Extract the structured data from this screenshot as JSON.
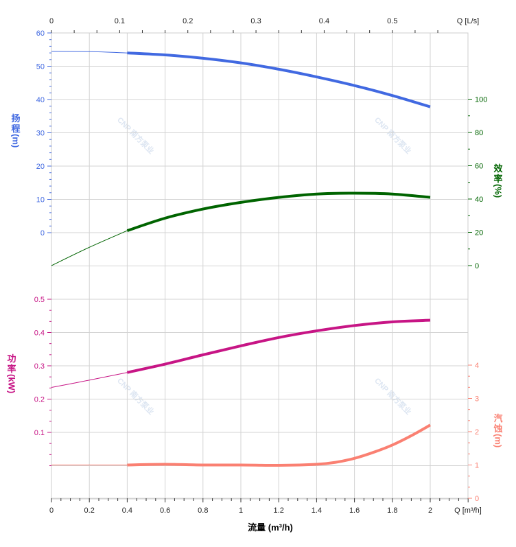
{
  "chart_data": {
    "type": "line",
    "xlabel": "流量 (m³/h)",
    "x_unit_bottom": "Q [m³/h]",
    "x_unit_top": "Q [L/s]",
    "xlim": [
      0,
      2.2
    ],
    "x_ticks_bottom": [
      0,
      0.2,
      0.4,
      0.6,
      0.8,
      1,
      1.2,
      1.4,
      1.6,
      1.8,
      2
    ],
    "x_ticks_top": [
      0,
      0.1,
      0.2,
      0.3,
      0.4,
      0.5
    ],
    "grid": true,
    "watermark": "CNP 南方泵业",
    "series": [
      {
        "name": "扬程",
        "unit": "(m)",
        "axis": "left-top",
        "color": "#4169e1",
        "ylim": [
          0,
          60
        ],
        "ticks": [
          0,
          10,
          20,
          30,
          40,
          50,
          60
        ],
        "x": [
          0,
          0.2,
          0.4,
          0.6,
          0.8,
          1.0,
          1.2,
          1.4,
          1.6,
          1.8,
          2.0
        ],
        "y": [
          54.5,
          54.4,
          54,
          53.4,
          52.4,
          51,
          49.1,
          46.8,
          44.2,
          41.2,
          37.8
        ]
      },
      {
        "name": "效率",
        "unit": "(%)",
        "axis": "right-top",
        "color": "#006400",
        "ylim": [
          0,
          100
        ],
        "ticks": [
          0,
          20,
          40,
          60,
          80,
          100
        ],
        "x": [
          0,
          0.2,
          0.4,
          0.6,
          0.8,
          1.0,
          1.2,
          1.4,
          1.6,
          1.8,
          2.0
        ],
        "y": [
          0,
          11,
          21,
          28.5,
          34,
          38,
          41,
          43,
          43.5,
          43,
          41
        ]
      },
      {
        "name": "功率",
        "unit": "(kW)",
        "axis": "left-bottom",
        "color": "#c71585",
        "ylim": [
          0,
          0.5
        ],
        "ticks": [
          0.1,
          0.2,
          0.3,
          0.4,
          0.5
        ],
        "x": [
          0,
          0.2,
          0.4,
          0.6,
          0.8,
          1.0,
          1.2,
          1.4,
          1.6,
          1.8,
          2.0
        ],
        "y": [
          0.235,
          0.257,
          0.28,
          0.305,
          0.333,
          0.36,
          0.385,
          0.405,
          0.421,
          0.432,
          0.437
        ]
      },
      {
        "name": "汽蚀",
        "unit": "(m)",
        "axis": "right-bottom",
        "color": "#fa8072",
        "ylim": [
          0,
          4
        ],
        "ticks": [
          0,
          1,
          2,
          3,
          4
        ],
        "x": [
          0,
          0.2,
          0.4,
          0.6,
          0.8,
          1.0,
          1.2,
          1.4,
          1.5,
          1.6,
          1.7,
          1.8,
          1.9,
          2.0
        ],
        "y": [
          1,
          1,
          1,
          1.02,
          1.0,
          1.0,
          0.99,
          1.02,
          1.08,
          1.2,
          1.38,
          1.6,
          1.88,
          2.2
        ]
      }
    ],
    "thin_segment_until": 0.4
  }
}
